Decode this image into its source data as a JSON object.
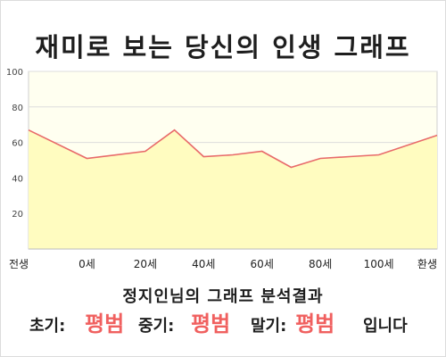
{
  "title": "재미로 보는 당신의 인생 그래프",
  "subtitle": "정지인님의 그래프 분석결과",
  "summary": {
    "early_label": "초기:",
    "early_value": "평범",
    "mid_label": "중기:",
    "mid_value": "평범",
    "late_label": "말기:",
    "late_value": "평범",
    "ending": "입니다"
  },
  "colors": {
    "line": "#e86a6a",
    "fill": "#fffcc0",
    "plot_bg": "#fffff0",
    "result_text": "#f0605f"
  },
  "chart_data": {
    "type": "area",
    "title": "재미로 보는 당신의 인생 그래프",
    "xlabel": "",
    "ylabel": "",
    "ylim": [
      0,
      100
    ],
    "yticks": [
      20,
      40,
      60,
      80,
      100
    ],
    "xtick_labels": [
      "전생",
      "0세",
      "20세",
      "40세",
      "60세",
      "80세",
      "100세",
      "환생"
    ],
    "grid": true,
    "legend": "none",
    "x": [
      -20,
      0,
      20,
      30,
      40,
      50,
      60,
      70,
      80,
      90,
      100,
      120
    ],
    "values": [
      67,
      51,
      55,
      67,
      52,
      53,
      55,
      46,
      51,
      52,
      53,
      64
    ]
  }
}
